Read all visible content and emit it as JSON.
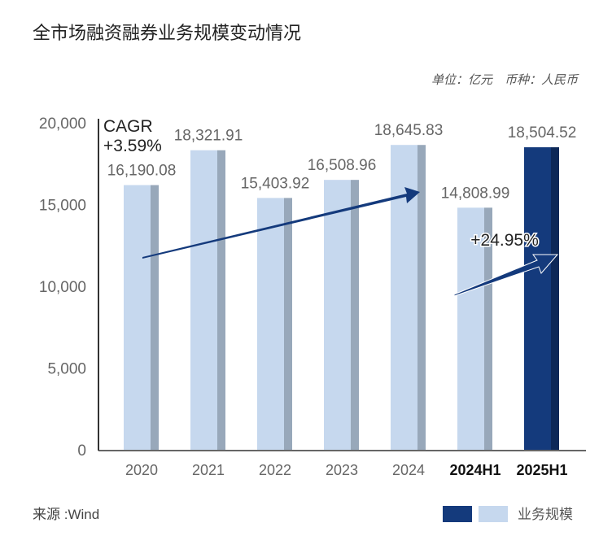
{
  "chart_data": {
    "type": "bar",
    "title": "全市场融资融券业务规模变动情况",
    "unit_note": "单位：亿元　币种：人民币",
    "categories": [
      "2020",
      "2021",
      "2022",
      "2023",
      "2024",
      "2024H1",
      "2025H1"
    ],
    "values": [
      16190.08,
      18321.91,
      15403.92,
      16508.96,
      18645.83,
      14808.99,
      18504.52
    ],
    "value_labels": [
      "16,190.08",
      "18,321.91",
      "15,403.92",
      "16,508.96",
      "18,645.83",
      "14,808.99",
      "18,504.52"
    ],
    "ylim": [
      0,
      20000
    ],
    "yticks": [
      "0",
      "5,000",
      "10,000",
      "15,000",
      "20,000"
    ],
    "ytick_values": [
      0,
      5000,
      10000,
      15000,
      20000
    ],
    "bold_categories": [
      "2024H1",
      "2025H1"
    ],
    "annotations": {
      "cagr_label": "CAGR",
      "cagr_value": "+3.59%",
      "growth_value": "+24.95%"
    },
    "source": "来源 :Wind",
    "legend": {
      "label": "业务规模",
      "placement": "bottom-right"
    },
    "grid": false,
    "colors": {
      "light": "#c6d8ee",
      "light_side": "#98a8ba",
      "highlight": "#143a7c",
      "highlight_side": "#0d2858",
      "arrow": "#143a7c",
      "text": "#666666"
    }
  }
}
